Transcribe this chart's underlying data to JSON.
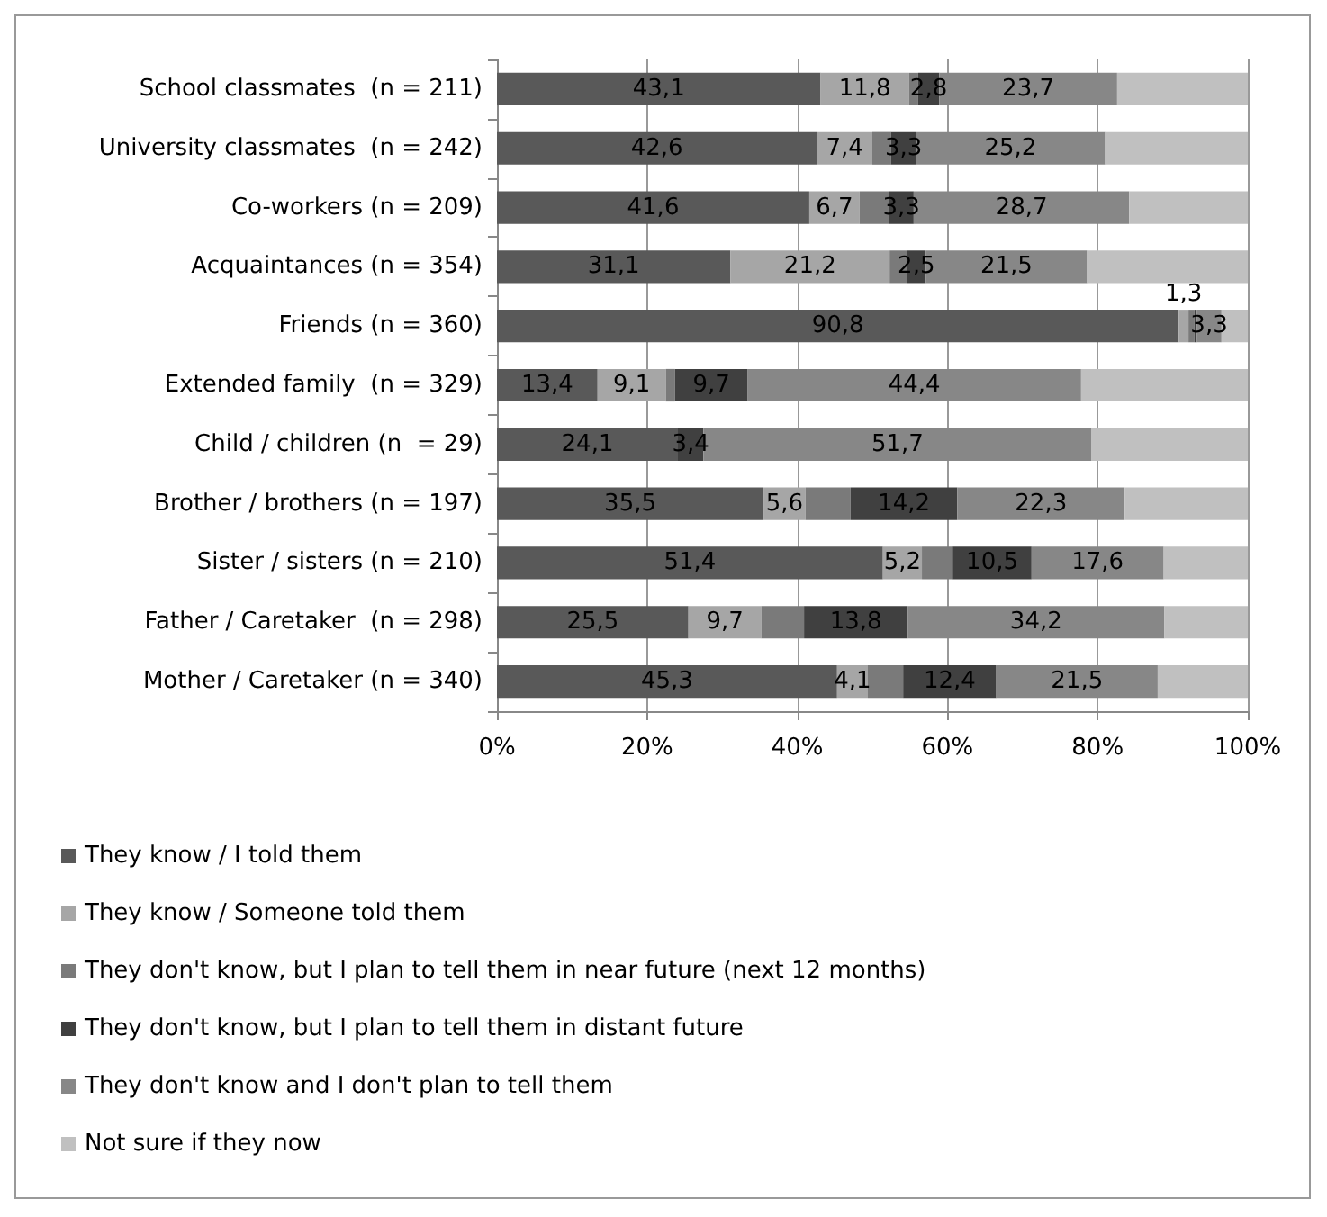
{
  "chart_data": {
    "type": "bar",
    "orientation": "horizontal",
    "stacked": true,
    "categories": [
      "School classmates  (n = 211)",
      "University classmates  (n = 242)",
      "Co-workers (n = 209)",
      "Acquaintances (n = 354)",
      "Friends (n = 360)",
      "Extended family  (n = 329)",
      "Child / children (n  = 29)",
      "Brother / brothers (n = 197)",
      "Sister / sisters (n = 210)",
      "Father / Caretaker  (n = 298)",
      "Mother / Caretaker (n = 340)"
    ],
    "series": [
      {
        "name": "They know / I told them",
        "color": "#595959",
        "values": [
          43.1,
          42.6,
          41.6,
          31.1,
          90.8,
          13.4,
          24.1,
          35.5,
          51.4,
          25.5,
          45.3
        ],
        "value_labels": [
          "43,1",
          "42,6",
          "41,6",
          "31,1",
          "90,8",
          "13,4",
          "24,1",
          "35,5",
          "51,4",
          "25,5",
          "45,3"
        ]
      },
      {
        "name": "They know / Someone told them",
        "color": "#a6a6a6",
        "values": [
          11.8,
          7.4,
          6.7,
          21.2,
          1.3,
          9.1,
          0,
          5.6,
          5.2,
          9.7,
          4.1
        ],
        "value_labels": [
          "11,8",
          "7,4",
          "6,7",
          "21,2",
          "1,3",
          "9,1",
          null,
          "5,6",
          "5,2",
          "9,7",
          "4,1"
        ]
      },
      {
        "name": "They don't know, but I plan to tell them in near future (next 12 months)",
        "color": "#7a7a7a",
        "values": [
          1.2,
          2.5,
          3.9,
          2.3,
          0.8,
          1.2,
          0,
          6.0,
          4.1,
          5.7,
          4.7
        ],
        "value_labels": [
          null,
          null,
          null,
          null,
          null,
          null,
          null,
          null,
          null,
          null,
          null
        ]
      },
      {
        "name": "They don't know, but I plan to tell them in distant future",
        "color": "#404040",
        "values": [
          2.8,
          3.3,
          3.3,
          2.5,
          0.3,
          9.7,
          3.4,
          14.2,
          10.5,
          13.8,
          12.4
        ],
        "value_labels": [
          "2,8",
          "3,3",
          "3,3",
          "2,5",
          null,
          "9,7",
          "3,4",
          "14,2",
          "10,5",
          "13,8",
          "12,4"
        ]
      },
      {
        "name": "They don't know and I don't plan to tell them",
        "color": "#878787",
        "values": [
          23.7,
          25.2,
          28.7,
          21.5,
          3.3,
          44.4,
          51.7,
          22.3,
          17.6,
          34.2,
          21.5
        ],
        "value_labels": [
          "23,7",
          "25,2",
          "28,7",
          "21,5",
          "3,3",
          "44,4",
          "51,7",
          "22,3",
          "17,6",
          "34,2",
          "21,5"
        ]
      },
      {
        "name": "Not sure if they now",
        "color": "#c0c0c0",
        "values": [
          17.4,
          19.0,
          15.8,
          21.4,
          3.5,
          22.2,
          20.8,
          16.4,
          11.2,
          11.1,
          12.0
        ],
        "value_labels": [
          null,
          null,
          null,
          null,
          null,
          null,
          null,
          null,
          null,
          null,
          null
        ]
      }
    ],
    "xlim": [
      0,
      100
    ],
    "xticks": [
      {
        "value": 0,
        "label": "0%"
      },
      {
        "value": 20,
        "label": "20%"
      },
      {
        "value": 40,
        "label": "40%"
      },
      {
        "value": 60,
        "label": "60%"
      },
      {
        "value": 80,
        "label": "80%"
      },
      {
        "value": 100,
        "label": "100%"
      }
    ],
    "grid": "x",
    "legend": "bottom"
  }
}
